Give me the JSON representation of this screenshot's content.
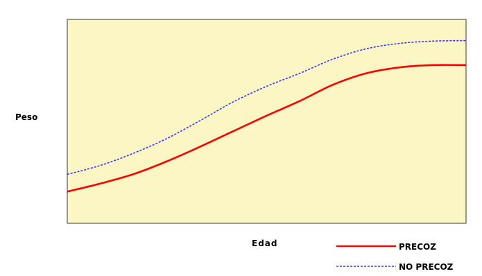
{
  "chart_data": {
    "type": "line",
    "title": "",
    "xlabel": "Edad",
    "ylabel": "Peso",
    "grid": false,
    "legend_position": "bottom-right",
    "plot_background": "#fbf6c3",
    "x": [
      0,
      1,
      2,
      3,
      4,
      5,
      6,
      7,
      8,
      9,
      10,
      11,
      12
    ],
    "series": [
      {
        "name": "PRECOZ",
        "color": "#ff0000",
        "line_style": "solid",
        "values": [
          0.94,
          1.44,
          2.02,
          2.8,
          3.7,
          4.65,
          5.6,
          6.5,
          7.5,
          8.2,
          8.56,
          8.7,
          8.7
        ]
      },
      {
        "name": "NO PRECOZ",
        "color": "#3333ff",
        "line_style": "dashed",
        "values": [
          2.0,
          2.55,
          3.3,
          4.2,
          5.3,
          6.45,
          7.4,
          8.2,
          9.07,
          9.7,
          10.03,
          10.17,
          10.2
        ]
      }
    ],
    "ylim": [
      -1,
      11.5
    ]
  }
}
